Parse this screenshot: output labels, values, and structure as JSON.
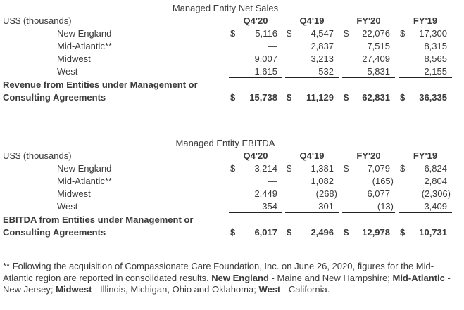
{
  "tables": [
    {
      "title": "Managed Entity Net Sales",
      "unit": "US$ (thousands)",
      "columns": [
        "Q4'20",
        "Q4'19",
        "FY'20",
        "FY'19"
      ],
      "rows": [
        {
          "label": "New England",
          "values": [
            "5,116",
            "4,547",
            "22,076",
            "17,300"
          ],
          "currency": "$"
        },
        {
          "label": "Mid-Atlantic**",
          "values": [
            "—",
            "2,837",
            "7,515",
            "8,315"
          ]
        },
        {
          "label": "Midwest",
          "values": [
            "9,007",
            "3,213",
            "27,409",
            "8,565"
          ]
        },
        {
          "label": "West",
          "values": [
            "1,615",
            "532",
            "5,831",
            "2,155"
          ]
        }
      ],
      "total": {
        "label_line1": "Revenue from Entities under Management or",
        "label_line2": "Consulting Agreements",
        "values": [
          "15,738",
          "11,129",
          "62,831",
          "36,335"
        ],
        "currency": "$"
      }
    },
    {
      "title": "Managed Entity EBITDA",
      "unit": "US$ (thousands)",
      "columns": [
        "Q4'20",
        "Q4'19",
        "FY'20",
        "FY'19"
      ],
      "rows": [
        {
          "label": "New England",
          "values": [
            "3,214",
            "1,381",
            "7,079",
            "6,824"
          ],
          "currency": "$"
        },
        {
          "label": "Mid-Atlantic**",
          "values": [
            "—",
            "1,082",
            "(165)",
            "2,804"
          ]
        },
        {
          "label": "Midwest",
          "values": [
            "2,449",
            "(268)",
            "6,077",
            "(2,306)"
          ]
        },
        {
          "label": "West",
          "values": [
            "354",
            "301",
            "(13)",
            "3,409"
          ]
        }
      ],
      "total": {
        "label_line1": "EBITDA from Entities under Management or",
        "label_line2": "Consulting Agreements",
        "values": [
          "6,017",
          "2,496",
          "12,978",
          "10,731"
        ],
        "currency": "$"
      }
    }
  ],
  "footnote": {
    "intro": "** Following the acquisition of Compassionate Care Foundation, Inc. on June 26, 2020, figures for the Mid-Atlantic region are reported in consolidated results. ",
    "ne_label": "New England",
    "ne_text": " - Maine and New Hampshire; ",
    "ma_label": "Mid-Atlantic",
    "ma_text": " - New Jersey; ",
    "mw_label": "Midwest",
    "mw_text": " - Illinois, Michigan, Ohio and Oklahoma; ",
    "w_label": "West",
    "w_text": " - California."
  }
}
